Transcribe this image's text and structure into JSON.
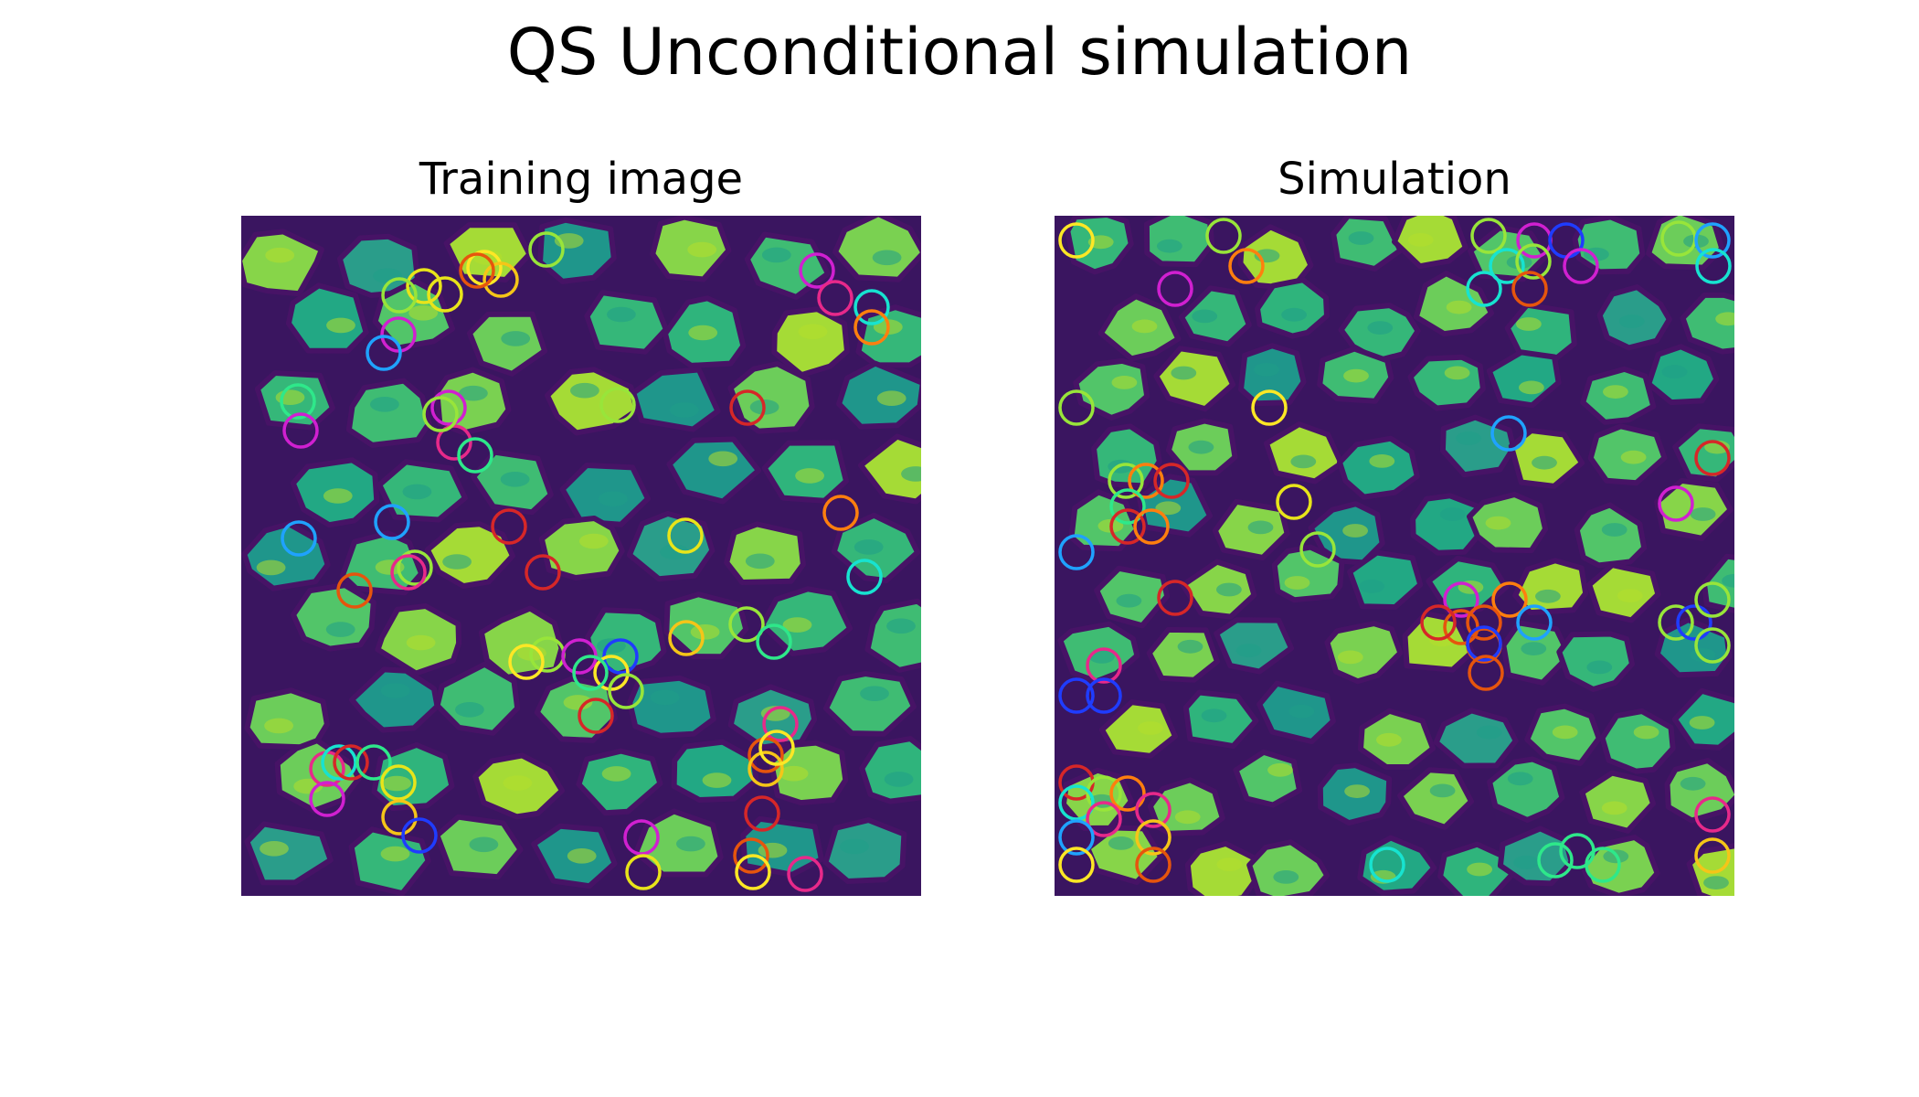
{
  "figure": {
    "title": "QS Unconditional simulation"
  },
  "panels": [
    {
      "title": "Training image",
      "colormap": "viridis",
      "markers": "colored-circles"
    },
    {
      "title": "Simulation",
      "colormap": "viridis",
      "markers": "colored-circles"
    }
  ],
  "colors": {
    "background": "#ffffff",
    "viridis_dark": "#440154",
    "viridis_mid": "#21918c",
    "viridis_bright": "#fde725"
  }
}
